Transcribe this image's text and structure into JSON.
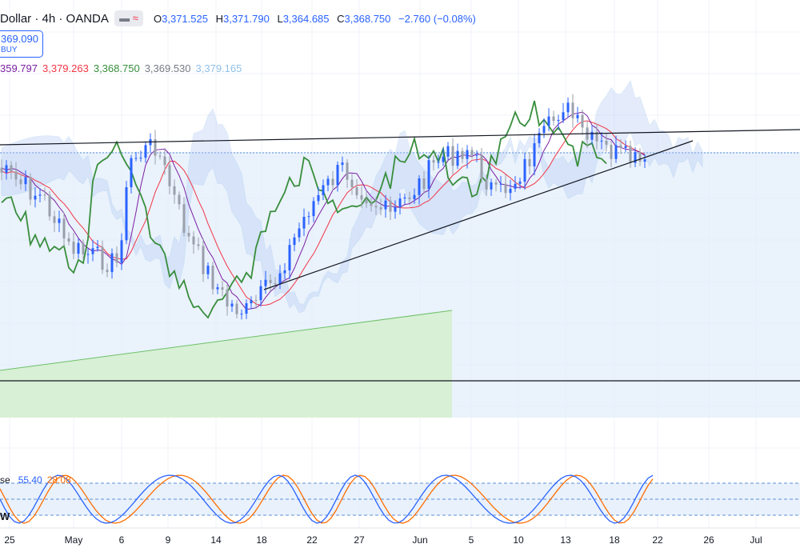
{
  "header": {
    "symbol": "Dollar · 4h · OANDA",
    "icons": [
      "grid-icon",
      "wave-icon"
    ],
    "ohlc": {
      "o_label": "O",
      "o": "3,371.525",
      "h_label": "H",
      "h": "3,371.790",
      "l_label": "L",
      "l": "3,364.685",
      "c_label": "C",
      "c": "3,368.750",
      "change": "−2.760 (−0.08%)"
    }
  },
  "trade": {
    "price": "369.090",
    "label": "BUY"
  },
  "indicator_values": [
    {
      "value": "359.797",
      "color": "#7b1fa2"
    },
    {
      "value": "3,379.263",
      "color": "#f23645"
    },
    {
      "value": "3,368.750",
      "color": "#388e3c"
    },
    {
      "value": "3,369.530",
      "color": "#787b86"
    },
    {
      "value": "3,379.165",
      "color": "#90bfe8"
    }
  ],
  "stoch": {
    "label": "se",
    "k": "55.40",
    "d": "28.08",
    "legend_letter": "W"
  },
  "x_axis": [
    "25",
    "May",
    "6",
    "9",
    "14",
    "18",
    "22",
    "27",
    "Jun",
    "5",
    "10",
    "13",
    "18",
    "22",
    "26",
    "Jul"
  ],
  "colors": {
    "bull": "#2962ff",
    "tenkan": "#7b1fa2",
    "kijun": "#f23645",
    "chikou": "#388e3c",
    "cloud_a": "#b3c8f5",
    "cloud_b": "#c7cbd6",
    "box_blue": "#e3eefb",
    "box_green": "#d6efd0"
  }
}
